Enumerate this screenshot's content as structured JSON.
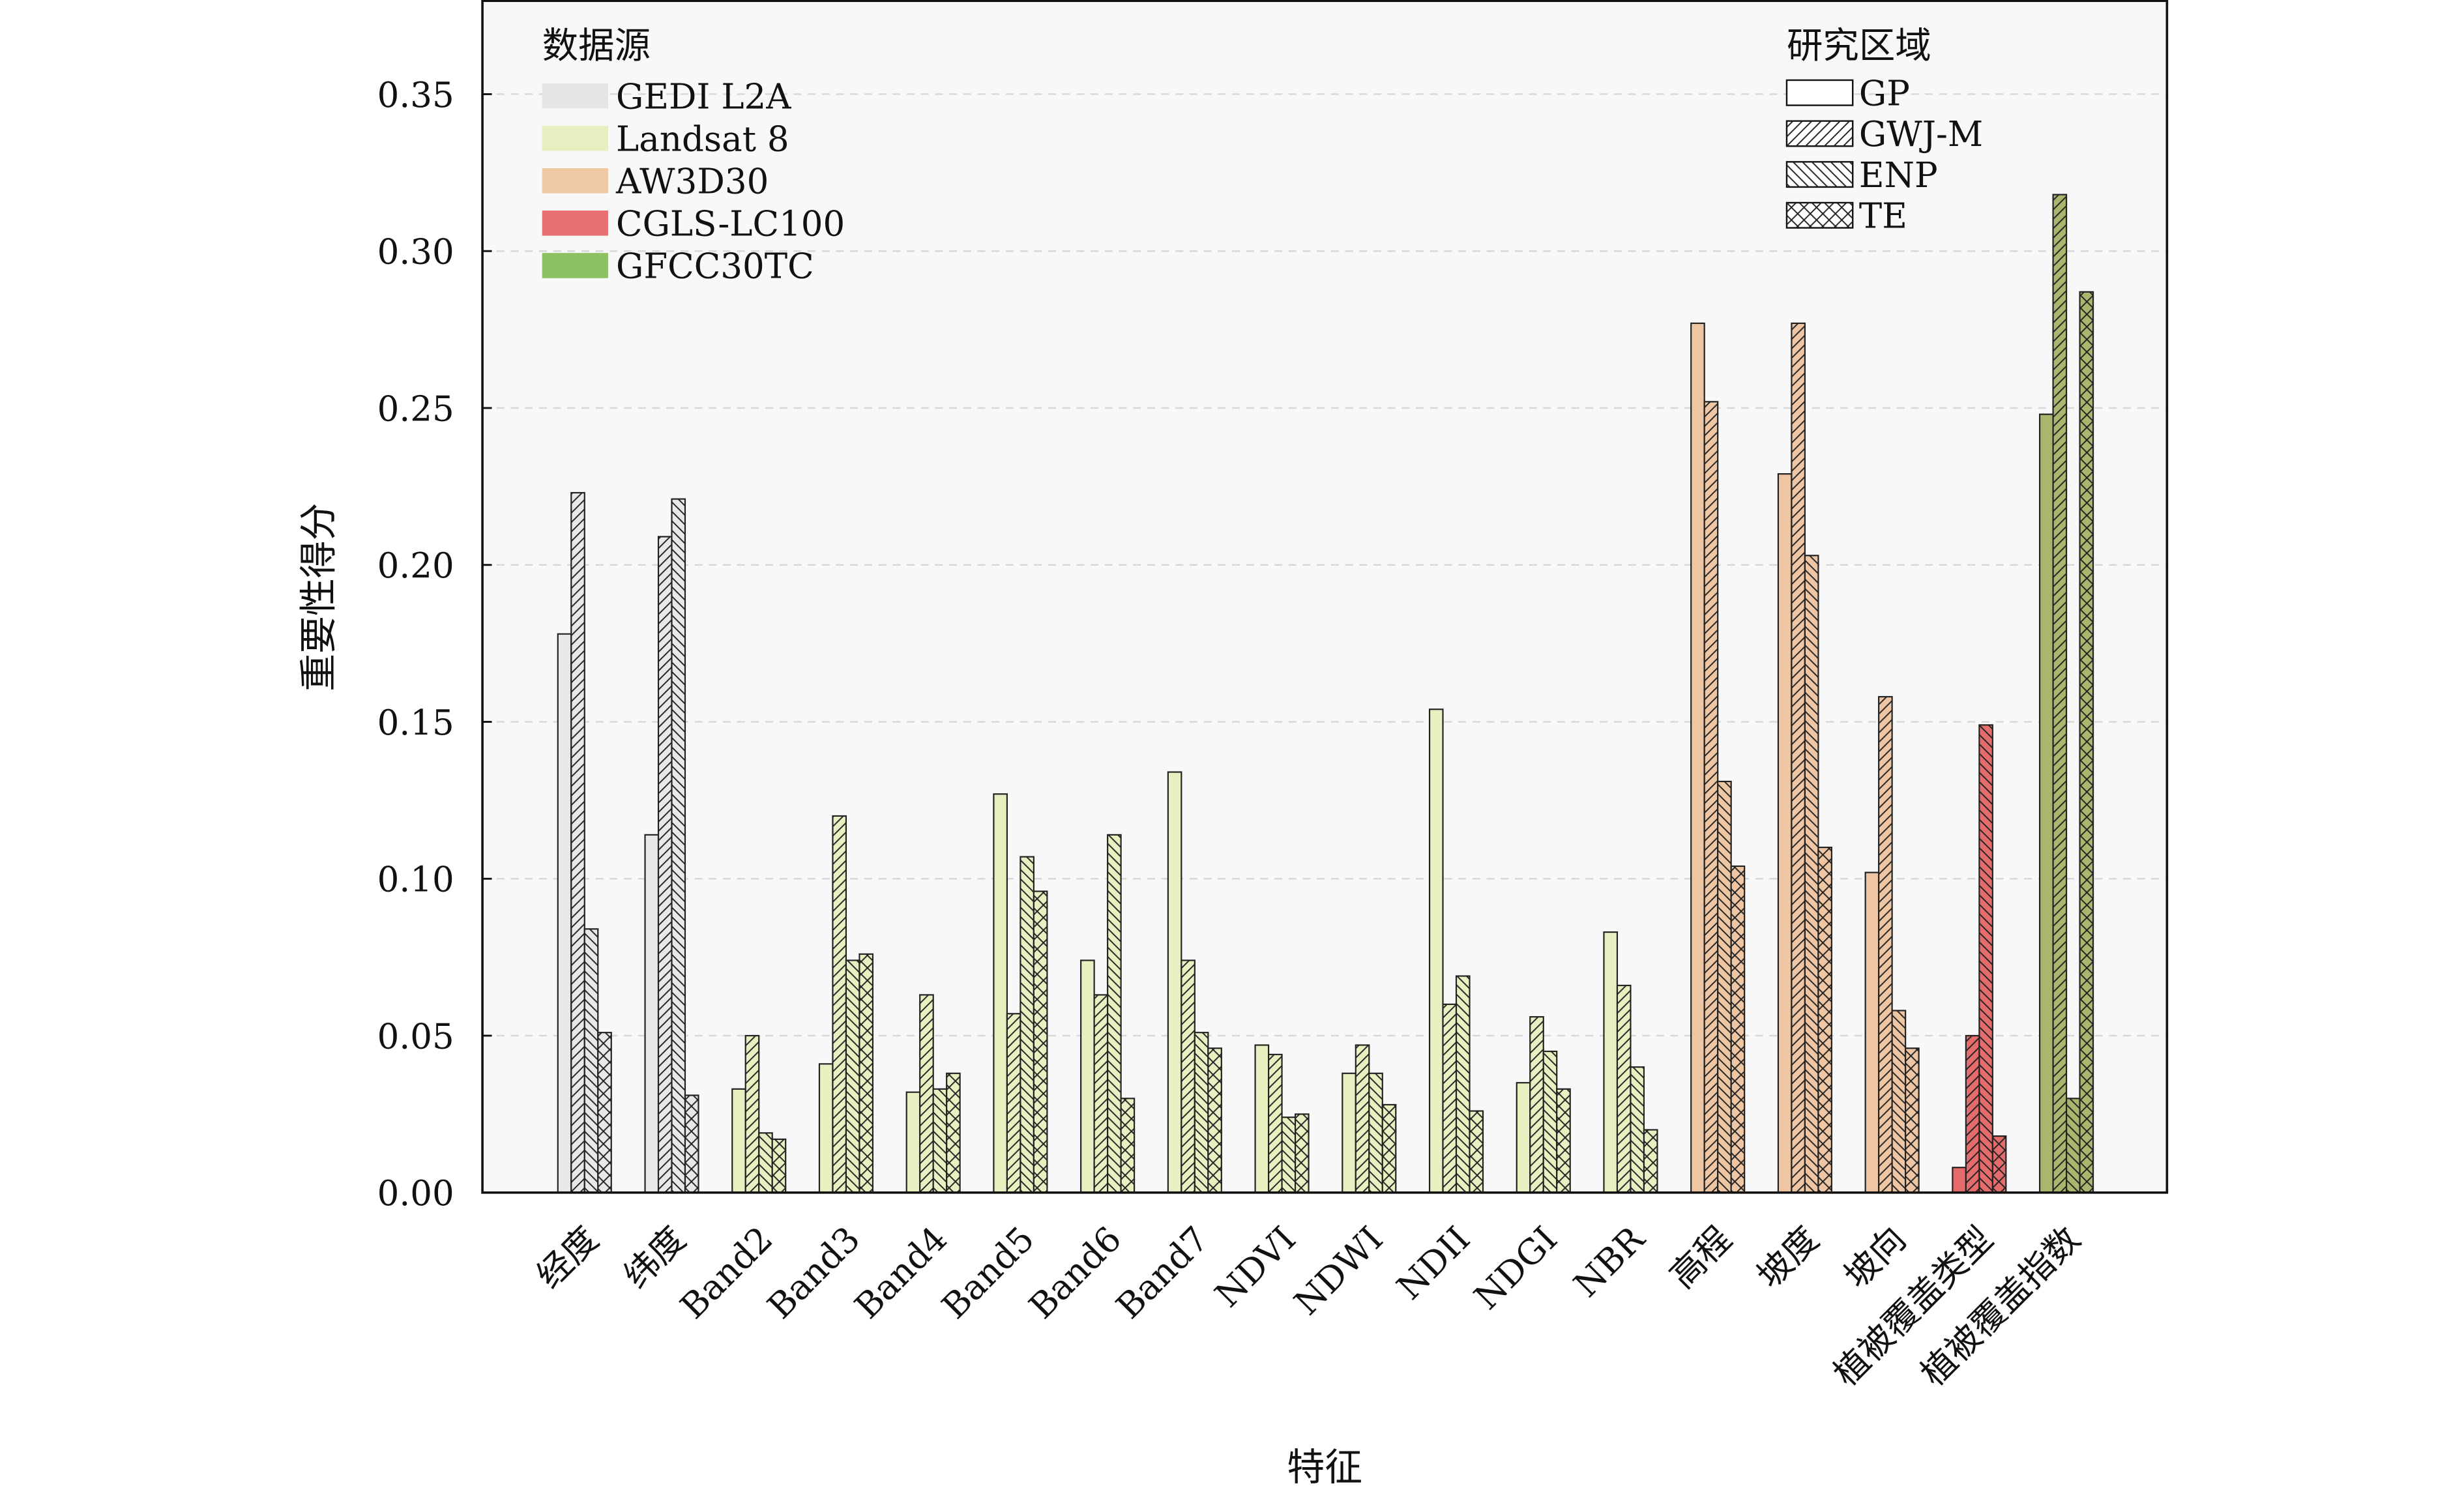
{
  "chart_data": {
    "type": "bar",
    "xlabel": "特征",
    "ylabel": "重要性得分",
    "ylim": [
      0,
      0.38
    ],
    "yticks": [
      "0.00",
      "0.05",
      "0.10",
      "0.15",
      "0.20",
      "0.25",
      "0.30",
      "0.35"
    ],
    "grid": true,
    "categories": [
      "经度",
      "纬度",
      "Band2",
      "Band3",
      "Band4",
      "Band5",
      "Band6",
      "Band7",
      "NDVI",
      "NDWI",
      "NDII",
      "NDGI",
      "NBR",
      "高程",
      "坡度",
      "坡向",
      "植被覆盖类型",
      "植被覆盖指数"
    ],
    "category_source": [
      "GEDI L2A",
      "GEDI L2A",
      "Landsat 8",
      "Landsat 8",
      "Landsat 8",
      "Landsat 8",
      "Landsat 8",
      "Landsat 8",
      "Landsat 8",
      "Landsat 8",
      "Landsat 8",
      "Landsat 8",
      "Landsat 8",
      "AW3D30",
      "AW3D30",
      "AW3D30",
      "CGLS-LC100",
      "GFCC30TC"
    ],
    "series": [
      {
        "name": "GP",
        "hatch": "none",
        "values": [
          0.178,
          0.114,
          0.033,
          0.041,
          0.032,
          0.127,
          0.074,
          0.134,
          0.047,
          0.038,
          0.154,
          0.035,
          0.083,
          0.277,
          0.229,
          0.102,
          0.008,
          0.248
        ]
      },
      {
        "name": "GWJ-M",
        "hatch": "forward-diagonal",
        "values": [
          0.223,
          0.209,
          0.05,
          0.12,
          0.063,
          0.057,
          0.063,
          0.074,
          0.044,
          0.047,
          0.06,
          0.056,
          0.066,
          0.252,
          0.277,
          0.158,
          0.05,
          0.318
        ]
      },
      {
        "name": "ENP",
        "hatch": "back-diagonal",
        "values": [
          0.084,
          0.221,
          0.019,
          0.074,
          0.033,
          0.107,
          0.114,
          0.051,
          0.024,
          0.038,
          0.069,
          0.045,
          0.04,
          0.131,
          0.203,
          0.058,
          0.149,
          0.03
        ]
      },
      {
        "name": "TE",
        "hatch": "cross",
        "values": [
          0.051,
          0.031,
          0.017,
          0.076,
          0.038,
          0.096,
          0.03,
          0.046,
          0.025,
          0.028,
          0.026,
          0.033,
          0.02,
          0.104,
          0.11,
          0.046,
          0.018,
          0.287
        ]
      }
    ],
    "legend_source": {
      "title": "数据源",
      "placement": "top-left",
      "entries": [
        {
          "name": "GEDI L2A",
          "color": "#e6e6e6"
        },
        {
          "name": "Landsat 8",
          "color": "#e6efc0"
        },
        {
          "name": "AW3D30",
          "color": "#efc8a6"
        },
        {
          "name": "CGLS-LC100",
          "color": "#e87070"
        },
        {
          "name": "GFCC30TC",
          "color": "#8cc060"
        }
      ]
    },
    "legend_region": {
      "title": "研究区域",
      "placement": "top-right",
      "entries": [
        "GP",
        "GWJ-M",
        "ENP",
        "TE"
      ]
    },
    "bar_colors": {
      "GEDI L2A": "#e8e8e8",
      "Landsat 8": "#e8f0c2",
      "AW3D30": "#efc6a4",
      "CGLS-LC100": "#e46c6c",
      "GFCC30TC": "#aab66e"
    }
  }
}
